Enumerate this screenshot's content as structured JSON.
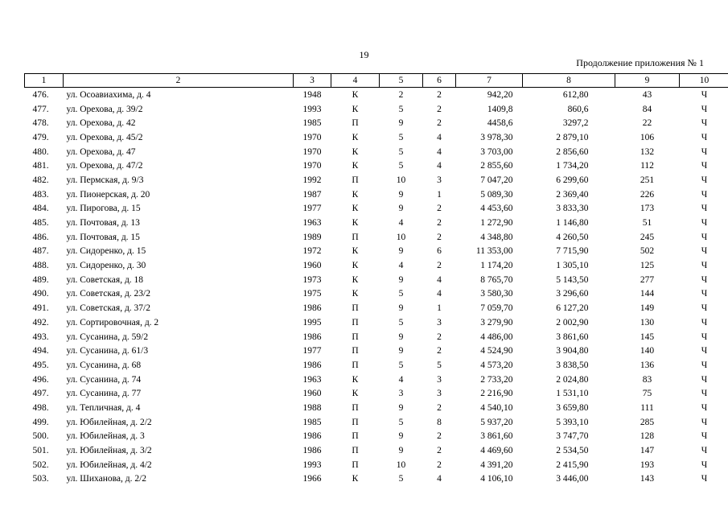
{
  "page_number": "19",
  "continuation_label": "Продолжение приложения № 1",
  "columns": [
    "1",
    "2",
    "3",
    "4",
    "5",
    "6",
    "7",
    "8",
    "9",
    "10"
  ],
  "rows": [
    {
      "n": "476.",
      "addr": "ул. Осоавиахима, д. 4",
      "year": "1948",
      "mat": "К",
      "fl": "2",
      "ent": "2",
      "a1": "942,20",
      "a2": "612,80",
      "res": "43",
      "cat": "Ч"
    },
    {
      "n": "477.",
      "addr": "ул. Орехова, д. 39/2",
      "year": "1993",
      "mat": "К",
      "fl": "5",
      "ent": "2",
      "a1": "1409,8",
      "a2": "860,6",
      "res": "84",
      "cat": "Ч"
    },
    {
      "n": "478.",
      "addr": "ул. Орехова, д. 42",
      "year": "1985",
      "mat": "П",
      "fl": "9",
      "ent": "2",
      "a1": "4458,6",
      "a2": "3297,2",
      "res": "22",
      "cat": "Ч"
    },
    {
      "n": "479.",
      "addr": "ул. Орехова, д. 45/2",
      "year": "1970",
      "mat": "К",
      "fl": "5",
      "ent": "4",
      "a1": "3 978,30",
      "a2": "2 879,10",
      "res": "106",
      "cat": "Ч"
    },
    {
      "n": "480.",
      "addr": "ул. Орехова, д. 47",
      "year": "1970",
      "mat": "К",
      "fl": "5",
      "ent": "4",
      "a1": "3 703,00",
      "a2": "2 856,60",
      "res": "132",
      "cat": "Ч"
    },
    {
      "n": "481.",
      "addr": "ул. Орехова, д. 47/2",
      "year": "1970",
      "mat": "К",
      "fl": "5",
      "ent": "4",
      "a1": "2 855,60",
      "a2": "1 734,20",
      "res": "112",
      "cat": "Ч"
    },
    {
      "n": "482.",
      "addr": "ул. Пермская, д. 9/3",
      "year": "1992",
      "mat": "П",
      "fl": "10",
      "ent": "3",
      "a1": "7 047,20",
      "a2": "6 299,60",
      "res": "251",
      "cat": "Ч"
    },
    {
      "n": "483.",
      "addr": "ул. Пионерская, д. 20",
      "year": "1987",
      "mat": "К",
      "fl": "9",
      "ent": "1",
      "a1": "5 089,30",
      "a2": "2 369,40",
      "res": "226",
      "cat": "Ч"
    },
    {
      "n": "484.",
      "addr": "ул. Пирогова, д. 15",
      "year": "1977",
      "mat": "К",
      "fl": "9",
      "ent": "2",
      "a1": "4 453,60",
      "a2": "3 833,30",
      "res": "173",
      "cat": "Ч"
    },
    {
      "n": "485.",
      "addr": "ул. Почтовая, д. 13",
      "year": "1963",
      "mat": "К",
      "fl": "4",
      "ent": "2",
      "a1": "1 272,90",
      "a2": "1 146,80",
      "res": "51",
      "cat": "Ч"
    },
    {
      "n": "486.",
      "addr": "ул. Почтовая, д. 15",
      "year": "1989",
      "mat": "П",
      "fl": "10",
      "ent": "2",
      "a1": "4 348,80",
      "a2": "4 260,50",
      "res": "245",
      "cat": "Ч"
    },
    {
      "n": "487.",
      "addr": "ул. Сидоренко, д. 15",
      "year": "1972",
      "mat": "К",
      "fl": "9",
      "ent": "6",
      "a1": "11 353,00",
      "a2": "7 715,90",
      "res": "502",
      "cat": "Ч"
    },
    {
      "n": "488.",
      "addr": "ул. Сидоренко, д. 30",
      "year": "1960",
      "mat": "К",
      "fl": "4",
      "ent": "2",
      "a1": "1 174,20",
      "a2": "1 305,10",
      "res": "125",
      "cat": "Ч"
    },
    {
      "n": "489.",
      "addr": "ул. Советская, д. 18",
      "year": "1973",
      "mat": "К",
      "fl": "9",
      "ent": "4",
      "a1": "8 765,70",
      "a2": "5 143,50",
      "res": "277",
      "cat": "Ч"
    },
    {
      "n": "490.",
      "addr": "ул. Советская, д. 23/2",
      "year": "1975",
      "mat": "К",
      "fl": "5",
      "ent": "4",
      "a1": "3 580,30",
      "a2": "3 296,60",
      "res": "144",
      "cat": "Ч"
    },
    {
      "n": "491.",
      "addr": "ул. Советская, д. 37/2",
      "year": "1986",
      "mat": "П",
      "fl": "9",
      "ent": "1",
      "a1": "7 059,70",
      "a2": "6 127,20",
      "res": "149",
      "cat": "Ч"
    },
    {
      "n": "492.",
      "addr": "ул. Сортировочная, д. 2",
      "year": "1995",
      "mat": "П",
      "fl": "5",
      "ent": "3",
      "a1": "3 279,90",
      "a2": "2 002,90",
      "res": "130",
      "cat": "Ч"
    },
    {
      "n": "493.",
      "addr": "ул. Сусанина, д. 59/2",
      "year": "1986",
      "mat": "П",
      "fl": "9",
      "ent": "2",
      "a1": "4 486,00",
      "a2": "3 861,60",
      "res": "145",
      "cat": "Ч"
    },
    {
      "n": "494.",
      "addr": "ул. Сусанина, д. 61/3",
      "year": "1977",
      "mat": "П",
      "fl": "9",
      "ent": "2",
      "a1": "4 524,90",
      "a2": "3 904,80",
      "res": "140",
      "cat": "Ч"
    },
    {
      "n": "495.",
      "addr": "ул. Сусанина, д. 68",
      "year": "1986",
      "mat": "П",
      "fl": "5",
      "ent": "5",
      "a1": "4 573,20",
      "a2": "3 838,50",
      "res": "136",
      "cat": "Ч"
    },
    {
      "n": "496.",
      "addr": "ул. Сусанина, д. 74",
      "year": "1963",
      "mat": "К",
      "fl": "4",
      "ent": "3",
      "a1": "2 733,20",
      "a2": "2 024,80",
      "res": "83",
      "cat": "Ч"
    },
    {
      "n": "497.",
      "addr": "ул. Сусанина, д. 77",
      "year": "1960",
      "mat": "К",
      "fl": "3",
      "ent": "3",
      "a1": "2 216,90",
      "a2": "1 531,10",
      "res": "75",
      "cat": "Ч"
    },
    {
      "n": "498.",
      "addr": "ул. Тепличная, д. 4",
      "year": "1988",
      "mat": "П",
      "fl": "9",
      "ent": "2",
      "a1": "4 540,10",
      "a2": "3 659,80",
      "res": "111",
      "cat": "Ч"
    },
    {
      "n": "499.",
      "addr": "ул. Юбилейная, д. 2/2",
      "year": "1985",
      "mat": "П",
      "fl": "5",
      "ent": "8",
      "a1": "5 937,20",
      "a2": "5 393,10",
      "res": "285",
      "cat": "Ч"
    },
    {
      "n": "500.",
      "addr": "ул. Юбилейная, д. 3",
      "year": "1986",
      "mat": "П",
      "fl": "9",
      "ent": "2",
      "a1": "3 861,60",
      "a2": "3 747,70",
      "res": "128",
      "cat": "Ч"
    },
    {
      "n": "501.",
      "addr": "ул. Юбилейная, д. 3/2",
      "year": "1986",
      "mat": "П",
      "fl": "9",
      "ent": "2",
      "a1": "4 469,60",
      "a2": "2 534,50",
      "res": "147",
      "cat": "Ч"
    },
    {
      "n": "502.",
      "addr": "ул. Юбилейная, д. 4/2",
      "year": "1993",
      "mat": "П",
      "fl": "10",
      "ent": "2",
      "a1": "4 391,20",
      "a2": "2 415,90",
      "res": "193",
      "cat": "Ч"
    },
    {
      "n": "503.",
      "addr": "ул. Шиханова, д. 2/2",
      "year": "1966",
      "mat": "К",
      "fl": "5",
      "ent": "4",
      "a1": "4 106,10",
      "a2": "3 446,00",
      "res": "143",
      "cat": "Ч"
    }
  ]
}
